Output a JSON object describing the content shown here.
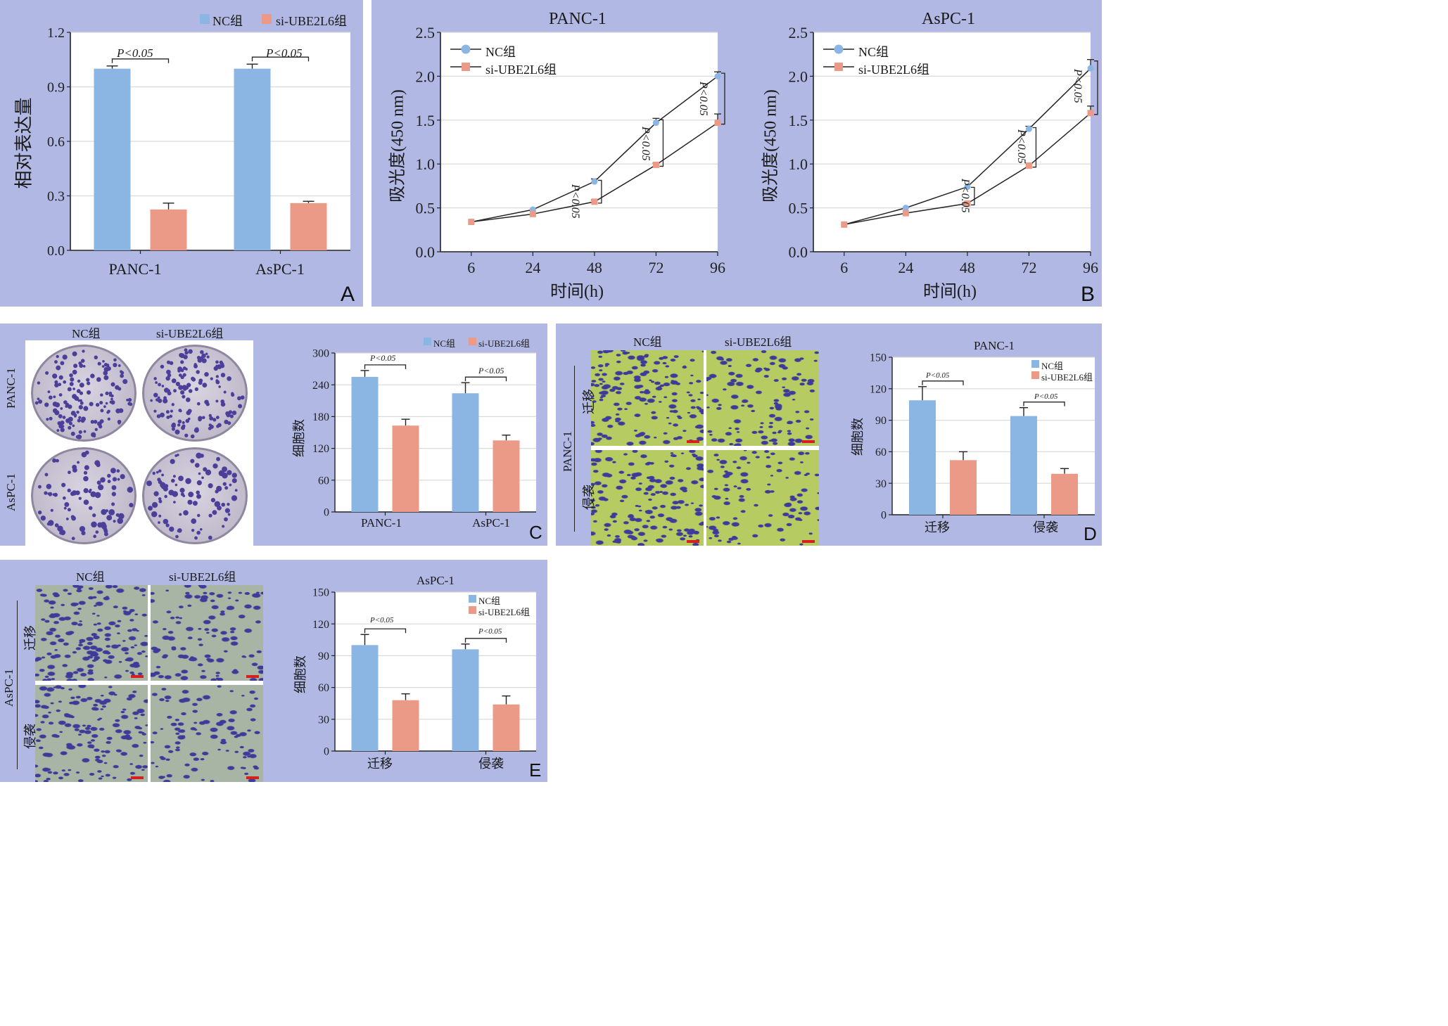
{
  "colors": {
    "nc": "#8bb5e2",
    "si": "#ec9a88",
    "panel_bg": "#b1b8e3",
    "grid": "#d9d9d9",
    "dish": "#bcb6c8",
    "colony": "#4b3f9a",
    "transwell_d": "#b6cc63",
    "transwell_e": "#a8b5a5",
    "cell_stain": "#3d3a9a"
  },
  "legend": {
    "nc": "NC组",
    "si": "si-UBE2L6组"
  },
  "panels": {
    "A": {
      "label": "A",
      "ylabel": "相对表达量",
      "categories": [
        "PANC-1",
        "AsPC-1"
      ],
      "yticks": [
        "0.0",
        "0.3",
        "0.6",
        "0.9",
        "1.2"
      ],
      "sig": [
        "P<0.05",
        "P<0.05"
      ]
    },
    "B": {
      "label": "B",
      "xlabel": "时间(h)",
      "ylabel": "吸光度(450 nm)",
      "xticks": [
        "6",
        "24",
        "48",
        "72",
        "96"
      ],
      "yticks": [
        "0.0",
        "0.5",
        "1.0",
        "1.5",
        "2.0",
        "2.5"
      ],
      "titles": [
        "PANC-1",
        "AsPC-1"
      ],
      "sig": "P<0.05"
    },
    "C": {
      "label": "C",
      "photo_cols": [
        "NC组",
        "si-UBE2L6组"
      ],
      "photo_rows": [
        "PANC-1",
        "AsPC-1"
      ],
      "ylabel": "细胞数",
      "categories": [
        "PANC-1",
        "AsPC-1"
      ],
      "yticks": [
        "0",
        "60",
        "120",
        "180",
        "240",
        "300"
      ],
      "sig": [
        "P<0.05",
        "P<0.05"
      ]
    },
    "D": {
      "label": "D",
      "photo_cols": [
        "NC组",
        "si-UBE2L6组"
      ],
      "photo_group": "PANC-1",
      "photo_rows": [
        "迁移",
        "侵袭"
      ],
      "title": "PANC-1",
      "ylabel": "细胞数",
      "categories": [
        "迁移",
        "侵袭"
      ],
      "yticks": [
        "0",
        "30",
        "60",
        "90",
        "120",
        "150"
      ],
      "sig": [
        "P<0.05",
        "P<0.05"
      ]
    },
    "E": {
      "label": "E",
      "photo_cols": [
        "NC组",
        "si-UBE2L6组"
      ],
      "photo_group": "AsPC-1",
      "photo_rows": [
        "迁移",
        "侵袭"
      ],
      "title": "AsPC-1",
      "ylabel": "细胞数",
      "categories": [
        "迁移",
        "侵袭"
      ],
      "yticks": [
        "0",
        "30",
        "60",
        "90",
        "120",
        "150"
      ],
      "sig": [
        "P<0.05",
        "P<0.05"
      ]
    }
  },
  "chart_data": [
    {
      "panel": "A",
      "type": "bar",
      "categories": [
        "PANC-1",
        "AsPC-1"
      ],
      "series": [
        {
          "name": "NC组",
          "values": [
            1.0,
            1.0
          ],
          "errors": [
            0.015,
            0.025
          ]
        },
        {
          "name": "si-UBE2L6组",
          "values": [
            0.225,
            0.26
          ],
          "errors": [
            0.035,
            0.01
          ]
        }
      ],
      "ylabel": "相对表达量",
      "ylim": [
        0,
        1.2
      ],
      "legend": "top-right",
      "grid": true
    },
    {
      "panel": "B",
      "title": "PANC-1",
      "type": "line",
      "x": [
        6,
        24,
        48,
        72,
        96
      ],
      "series": [
        {
          "name": "NC组",
          "values": [
            0.34,
            0.48,
            0.8,
            1.47,
            2.0
          ],
          "errors": [
            0.01,
            0.01,
            0.03,
            0.05,
            0.05
          ]
        },
        {
          "name": "si-UBE2L6组",
          "values": [
            0.34,
            0.43,
            0.57,
            0.99,
            1.47
          ],
          "errors": [
            0.01,
            0.01,
            0.02,
            0.02,
            0.1
          ]
        }
      ],
      "xlabel": "时间(h)",
      "ylabel": "吸光度(450 nm)",
      "ylim": [
        0,
        2.5
      ],
      "legend": "top-left",
      "grid": true
    },
    {
      "panel": "B",
      "title": "AsPC-1",
      "type": "line",
      "x": [
        6,
        24,
        48,
        72,
        96
      ],
      "series": [
        {
          "name": "NC组",
          "values": [
            0.31,
            0.5,
            0.74,
            1.4,
            2.09
          ],
          "errors": [
            0.01,
            0.01,
            0.01,
            0.03,
            0.1
          ]
        },
        {
          "name": "si-UBE2L6组",
          "values": [
            0.31,
            0.44,
            0.55,
            0.98,
            1.58
          ],
          "errors": [
            0.01,
            0.01,
            0.01,
            0.03,
            0.08
          ]
        }
      ],
      "xlabel": "时间(h)",
      "ylabel": "吸光度(450 nm)",
      "ylim": [
        0,
        2.5
      ],
      "legend": "top-left",
      "grid": true
    },
    {
      "panel": "C",
      "type": "bar",
      "categories": [
        "PANC-1",
        "AsPC-1"
      ],
      "series": [
        {
          "name": "NC组",
          "values": [
            255,
            224
          ],
          "errors": [
            12,
            20
          ]
        },
        {
          "name": "si-UBE2L6组",
          "values": [
            163,
            135
          ],
          "errors": [
            12,
            10
          ]
        }
      ],
      "ylabel": "细胞数",
      "ylim": [
        0,
        300
      ],
      "legend": "top-right",
      "grid": true
    },
    {
      "panel": "D",
      "title": "PANC-1",
      "type": "bar",
      "categories": [
        "迁移",
        "侵袭"
      ],
      "series": [
        {
          "name": "NC组",
          "values": [
            109,
            94
          ],
          "errors": [
            13,
            8
          ]
        },
        {
          "name": "si-UBE2L6组",
          "values": [
            52,
            39
          ],
          "errors": [
            8,
            5
          ]
        }
      ],
      "ylabel": "细胞数",
      "ylim": [
        0,
        150
      ],
      "legend": "top-right",
      "grid": true
    },
    {
      "panel": "E",
      "title": "AsPC-1",
      "type": "bar",
      "categories": [
        "迁移",
        "侵袭"
      ],
      "series": [
        {
          "name": "NC组",
          "values": [
            100,
            96
          ],
          "errors": [
            10,
            5
          ]
        },
        {
          "name": "si-UBE2L6组",
          "values": [
            48,
            44
          ],
          "errors": [
            6,
            8
          ]
        }
      ],
      "ylabel": "细胞数",
      "ylim": [
        0,
        150
      ],
      "legend": "top-right",
      "grid": true
    }
  ]
}
